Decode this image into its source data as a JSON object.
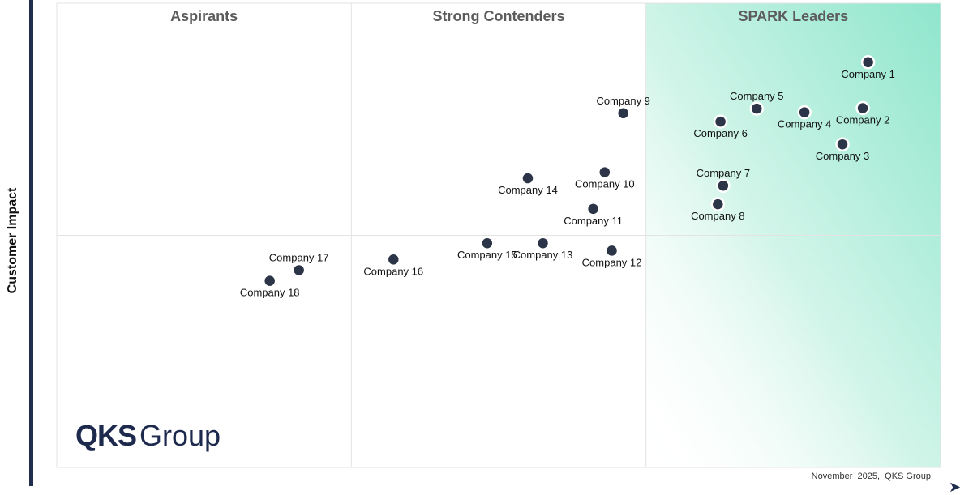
{
  "chart_data": {
    "type": "scatter",
    "title": "",
    "xlabel": "",
    "ylabel": "Customer Impact",
    "xlim": [
      0,
      100
    ],
    "ylim": [
      0,
      100
    ],
    "grid": false,
    "quadrants": [
      {
        "label": "Aspirants"
      },
      {
        "label": "Strong Contenders"
      },
      {
        "label": "SPARK Leaders"
      }
    ],
    "points": [
      {
        "name": "Company 1",
        "x": 91.8,
        "y": 87.3,
        "label_pos": "below"
      },
      {
        "name": "Company 2",
        "x": 91.2,
        "y": 77.4,
        "label_pos": "below"
      },
      {
        "name": "Company 3",
        "x": 88.9,
        "y": 69.6,
        "label_pos": "below"
      },
      {
        "name": "Company 4",
        "x": 84.6,
        "y": 76.5,
        "label_pos": "below"
      },
      {
        "name": "Company 5",
        "x": 79.2,
        "y": 77.3,
        "label_pos": "above"
      },
      {
        "name": "Company 6",
        "x": 75.1,
        "y": 74.5,
        "label_pos": "below"
      },
      {
        "name": "Company 7",
        "x": 75.4,
        "y": 60.7,
        "label_pos": "above"
      },
      {
        "name": "Company 8",
        "x": 74.8,
        "y": 56.7,
        "label_pos": "below"
      },
      {
        "name": "Company 9",
        "x": 64.1,
        "y": 76.3,
        "label_pos": "above"
      },
      {
        "name": "Company 10",
        "x": 62.0,
        "y": 63.6,
        "label_pos": "below"
      },
      {
        "name": "Company 11",
        "x": 60.7,
        "y": 55.7,
        "label_pos": "below"
      },
      {
        "name": "Company 12",
        "x": 62.8,
        "y": 46.7,
        "label_pos": "below"
      },
      {
        "name": "Company 13",
        "x": 55.0,
        "y": 48.3,
        "label_pos": "below"
      },
      {
        "name": "Company 14",
        "x": 53.3,
        "y": 62.3,
        "label_pos": "below"
      },
      {
        "name": "Company 15",
        "x": 48.7,
        "y": 48.3,
        "label_pos": "below"
      },
      {
        "name": "Company 16",
        "x": 38.1,
        "y": 44.8,
        "label_pos": "below"
      },
      {
        "name": "Company 17",
        "x": 27.4,
        "y": 42.5,
        "label_pos": "above"
      },
      {
        "name": "Company 18",
        "x": 24.1,
        "y": 40.2,
        "label_pos": "below"
      }
    ]
  },
  "footer": {
    "note": "November  2025,  QKS Group",
    "brand_strong": "QKS",
    "brand_light": "Group"
  }
}
